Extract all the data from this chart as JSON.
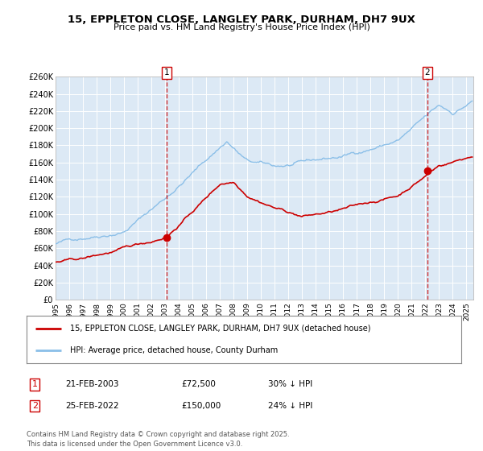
{
  "title": "15, EPPLETON CLOSE, LANGLEY PARK, DURHAM, DH7 9UX",
  "subtitle": "Price paid vs. HM Land Registry's House Price Index (HPI)",
  "background_color": "#dce9f5",
  "plot_bg_color": "#dce9f5",
  "hpi_color": "#8bbfe8",
  "price_color": "#cc0000",
  "vline_color": "#cc0000",
  "ylim": [
    0,
    260000
  ],
  "yticks": [
    0,
    20000,
    40000,
    60000,
    80000,
    100000,
    120000,
    140000,
    160000,
    180000,
    200000,
    220000,
    240000,
    260000
  ],
  "xlim_start": 1995.0,
  "xlim_end": 2025.5,
  "sale1_date": 2003.13,
  "sale1_price": 72500,
  "sale1_label": "1",
  "sale2_date": 2022.15,
  "sale2_price": 150000,
  "sale2_label": "2",
  "legend_label_price": "15, EPPLETON CLOSE, LANGLEY PARK, DURHAM, DH7 9UX (detached house)",
  "legend_label_hpi": "HPI: Average price, detached house, County Durham",
  "table_row1": [
    "1",
    "21-FEB-2003",
    "£72,500",
    "30% ↓ HPI"
  ],
  "table_row2": [
    "2",
    "25-FEB-2022",
    "£150,000",
    "24% ↓ HPI"
  ],
  "footnote": "Contains HM Land Registry data © Crown copyright and database right 2025.\nThis data is licensed under the Open Government Licence v3.0.",
  "xlabel_years": [
    1995,
    1996,
    1997,
    1998,
    1999,
    2000,
    2001,
    2002,
    2003,
    2004,
    2005,
    2006,
    2007,
    2008,
    2009,
    2010,
    2011,
    2012,
    2013,
    2014,
    2015,
    2016,
    2017,
    2018,
    2019,
    2020,
    2021,
    2022,
    2023,
    2024,
    2025
  ]
}
